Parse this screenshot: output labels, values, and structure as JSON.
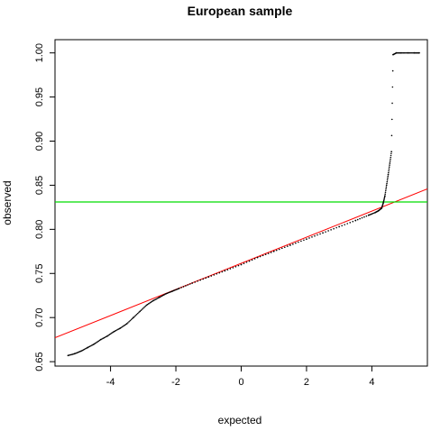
{
  "chart_data": {
    "type": "scatter",
    "title": "European sample",
    "xlabel": "expected",
    "ylabel": "observed",
    "xlim": [
      -5.7,
      5.7
    ],
    "ylim": [
      0.645,
      1.015
    ],
    "x_ticks": [
      -4,
      -2,
      0,
      2,
      4
    ],
    "x_tick_labels": [
      "-4",
      "-2",
      "0",
      "2",
      "4"
    ],
    "y_ticks": [
      0.65,
      0.7,
      0.75,
      0.8,
      0.85,
      0.9,
      0.95,
      1.0
    ],
    "y_tick_labels": [
      "0.65",
      "0.70",
      "0.75",
      "0.80",
      "0.85",
      "0.90",
      "0.95",
      "1.00"
    ],
    "grid": false,
    "series": [
      {
        "color": "#000000",
        "points": [
          [
            -5.3,
            0.657
          ],
          [
            -5.1,
            0.659
          ],
          [
            -4.9,
            0.662
          ],
          [
            -4.7,
            0.666
          ],
          [
            -4.5,
            0.67
          ],
          [
            -4.3,
            0.675
          ],
          [
            -4.1,
            0.679
          ],
          [
            -3.9,
            0.684
          ],
          [
            -3.7,
            0.688
          ],
          [
            -3.5,
            0.693
          ],
          [
            -3.3,
            0.7
          ],
          [
            -3.1,
            0.707
          ],
          [
            -2.9,
            0.714
          ],
          [
            -2.7,
            0.719
          ],
          [
            -2.5,
            0.723
          ],
          [
            -2.3,
            0.727
          ],
          [
            -2.1,
            0.73
          ],
          [
            -1.9,
            0.733
          ],
          [
            -1.5,
            0.739
          ],
          [
            -1.0,
            0.746
          ],
          [
            -0.5,
            0.753
          ],
          [
            0.0,
            0.76
          ],
          [
            0.5,
            0.768
          ],
          [
            1.0,
            0.775
          ],
          [
            1.5,
            0.782
          ],
          [
            2.0,
            0.789
          ],
          [
            2.5,
            0.796
          ],
          [
            3.0,
            0.803
          ],
          [
            3.5,
            0.81
          ],
          [
            3.9,
            0.816
          ],
          [
            4.1,
            0.819
          ],
          [
            4.2,
            0.821
          ],
          [
            4.3,
            0.824
          ],
          [
            4.35,
            0.83
          ],
          [
            4.4,
            0.838
          ],
          [
            4.45,
            0.85
          ],
          [
            4.5,
            0.862
          ],
          [
            4.55,
            0.875
          ],
          [
            4.6,
            0.888
          ],
          [
            4.65,
            0.998
          ],
          [
            4.75,
            1.0
          ],
          [
            4.9,
            1.0
          ],
          [
            5.1,
            1.0
          ],
          [
            5.3,
            1.0
          ],
          [
            5.45,
            1.0
          ]
        ]
      }
    ],
    "reference_lines": [
      {
        "type": "abline",
        "color": "#ff0000",
        "intercept": 0.7615,
        "slope": 0.0148
      },
      {
        "type": "hline",
        "color": "#00dd00",
        "y": 0.831
      }
    ]
  }
}
